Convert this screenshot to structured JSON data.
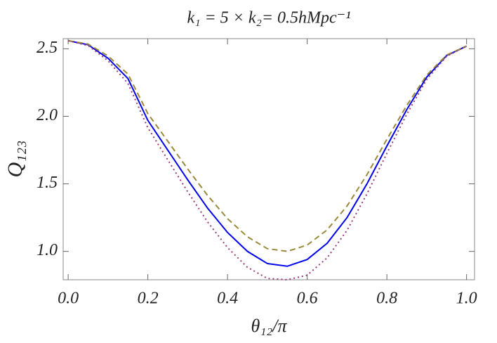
{
  "chart_data": {
    "type": "line",
    "title": "k₁ = 5 × k₂= 0.5hMpc⁻¹",
    "x_label": "θ₁₂/π",
    "y_label": "Q₁₂₃",
    "x": [
      0,
      0.05,
      0.1,
      0.15,
      0.2,
      0.25,
      0.3,
      0.35,
      0.4,
      0.45,
      0.5,
      0.55,
      0.6,
      0.65,
      0.7,
      0.75,
      0.8,
      0.85,
      0.9,
      0.95,
      1
    ],
    "series": [
      {
        "color": "#0000ee",
        "dash": "solid",
        "values": [
          2.56,
          2.53,
          2.43,
          2.28,
          1.97,
          1.75,
          1.53,
          1.32,
          1.14,
          1.0,
          0.91,
          0.89,
          0.94,
          1.06,
          1.25,
          1.5,
          1.78,
          2.05,
          2.29,
          2.45,
          2.52
        ]
      },
      {
        "color": "#9a8a3a",
        "dash": "dashed",
        "values": [
          2.56,
          2.535,
          2.447,
          2.313,
          2.02,
          1.816,
          1.61,
          1.414,
          1.242,
          1.108,
          1.02,
          1.0,
          1.047,
          1.159,
          1.336,
          1.568,
          1.83,
          2.081,
          2.305,
          2.454,
          2.52
        ]
      },
      {
        "color": "#9a3a7a",
        "dash": "dotted",
        "values": [
          2.56,
          2.524,
          2.412,
          2.244,
          1.916,
          1.678,
          1.442,
          1.218,
          1.028,
          0.882,
          0.8,
          0.79,
          0.824,
          0.952,
          1.156,
          1.426,
          1.726,
          2.016,
          2.273,
          2.445,
          2.52
        ]
      }
    ],
    "xlim": [
      -0.0125,
      1.02
    ],
    "ylim": [
      0.79,
      2.575
    ],
    "xticks": [
      {
        "value": 0,
        "label": "0.0"
      },
      0.2,
      0.4,
      0.6,
      0.8,
      {
        "value": 1,
        "label": "1.0"
      }
    ],
    "yticks": [
      {
        "value": 1,
        "label": "1.0"
      },
      1.5,
      {
        "value": 2,
        "label": "2.0"
      },
      2.5
    ]
  }
}
